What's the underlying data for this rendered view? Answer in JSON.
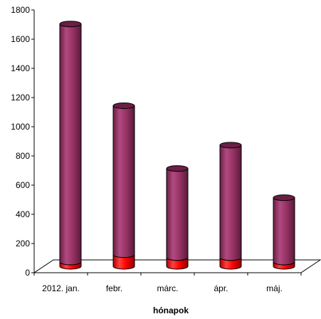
{
  "chart_data": {
    "type": "bar",
    "stacked": true,
    "style": "3d-cylinder",
    "title": "",
    "xlabel": "hónapok",
    "ylabel": "",
    "ylim": [
      0,
      1800
    ],
    "yticks": [
      0,
      200,
      400,
      600,
      800,
      1000,
      1200,
      1400,
      1600,
      1800
    ],
    "grid": false,
    "categories": [
      "2012. jan.",
      "febr.",
      "márc.",
      "ápr.",
      "máj."
    ],
    "series": [
      {
        "color": "#ff0000",
        "values": [
          30,
          80,
          60,
          60,
          30
        ]
      },
      {
        "color": "#993366",
        "values": [
          1630,
          1020,
          610,
          770,
          440
        ]
      }
    ]
  }
}
